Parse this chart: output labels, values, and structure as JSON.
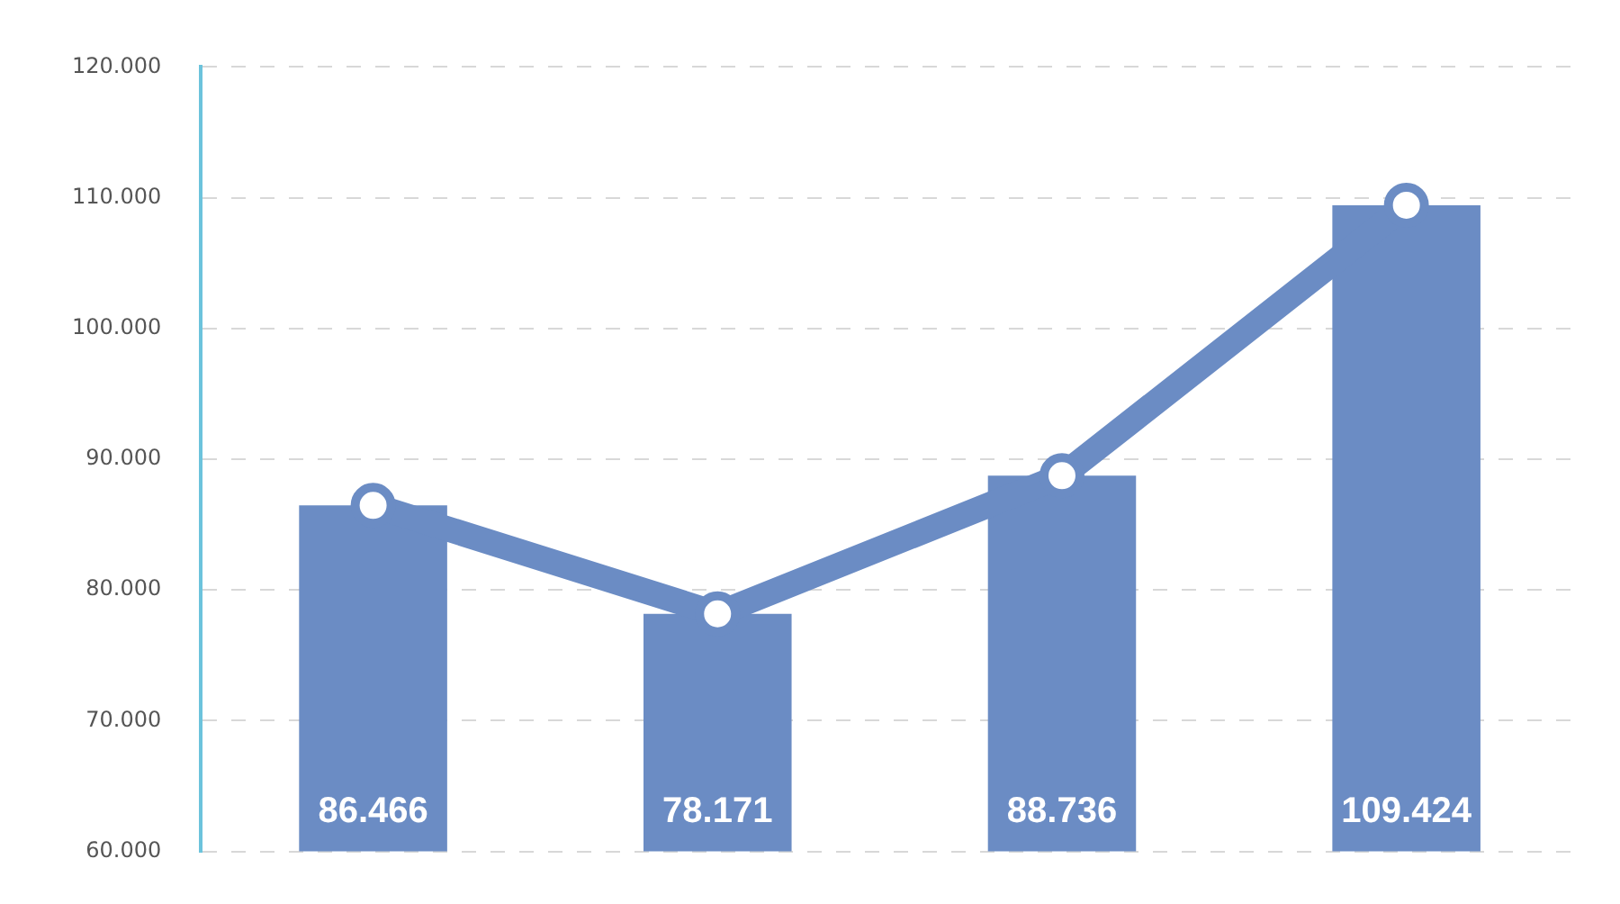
{
  "chart_data": {
    "type": "bar",
    "categories": [
      null,
      null,
      null,
      null
    ],
    "series": [
      {
        "color": "#6b8cc4",
        "values": [
          86466,
          78171,
          88736,
          109424
        ],
        "value_labels": [
          "86.466",
          "78.171",
          "88.736",
          "109.424"
        ]
      },
      {
        "type": "line",
        "color": "#6b8cc4",
        "values": [
          86466,
          78171,
          88736,
          109424
        ],
        "marker": "circle"
      }
    ],
    "ylim": [
      60000,
      120000
    ],
    "yticks": [
      {
        "value": 60000,
        "label": "60.000"
      },
      {
        "value": 70000,
        "label": "70.000"
      },
      {
        "value": 80000,
        "label": "80.000"
      },
      {
        "value": 90000,
        "label": "90.000"
      },
      {
        "value": 100000,
        "label": "100.000"
      },
      {
        "value": 110000,
        "label": "110.000"
      },
      {
        "value": 120000,
        "label": "120.000"
      }
    ],
    "grid": "y",
    "legend": false,
    "tick_labels": "y"
  }
}
